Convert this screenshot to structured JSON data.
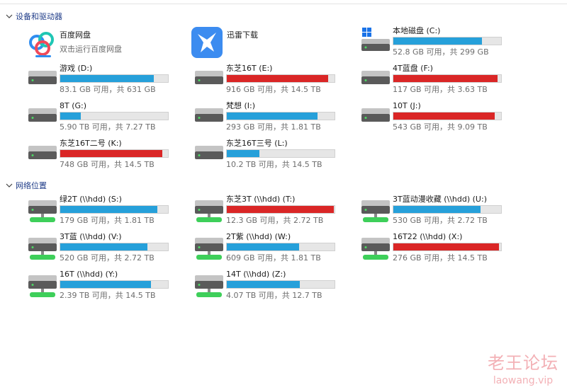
{
  "sections": [
    {
      "title": "设备和驱动器"
    },
    {
      "title": "网络位置"
    }
  ],
  "apps": [
    {
      "name": "百度网盘",
      "subtitle": "双击运行百度网盘",
      "icon": "baidu-netdisk-icon"
    },
    {
      "name": "迅雷下载",
      "icon": "xunlei-icon"
    }
  ],
  "colors": {
    "normal": "#26a0da",
    "low_space": "#da2626",
    "header": "#1f3c88"
  },
  "drives": [
    {
      "name": "本地磁盘 (C:)",
      "free": "52.8 GB 可用，共 299 GB",
      "used": 0.82,
      "color": "normal",
      "icon": "windows-drive-icon"
    },
    {
      "name": "游戏 (D:)",
      "free": "83.1 GB 可用，共 631 GB",
      "used": 0.87,
      "color": "normal",
      "icon": "hard-drive-icon"
    },
    {
      "name": "东芝16T (E:)",
      "free": "916 GB 可用，共 14.5 TB",
      "used": 0.94,
      "color": "low_space",
      "icon": "hard-drive-icon"
    },
    {
      "name": "4T蓝盘 (F:)",
      "free": "117 GB 可用，共 3.63 TB",
      "used": 0.97,
      "color": "low_space",
      "icon": "hard-drive-icon"
    },
    {
      "name": "8T (G:)",
      "free": "5.90 TB 可用，共 7.27 TB",
      "used": 0.19,
      "color": "normal",
      "icon": "hard-drive-icon"
    },
    {
      "name": "梵想 (I:)",
      "free": "293 GB 可用，共 1.81 TB",
      "used": 0.84,
      "color": "normal",
      "icon": "hard-drive-icon"
    },
    {
      "name": "10T (J:)",
      "free": "543 GB 可用，共 9.09 TB",
      "used": 0.94,
      "color": "low_space",
      "icon": "hard-drive-icon"
    },
    {
      "name": "东芝16T二号 (K:)",
      "free": "748 GB 可用，共 14.5 TB",
      "used": 0.95,
      "color": "low_space",
      "icon": "hard-drive-icon"
    },
    {
      "name": "东芝16T三号 (L:)",
      "free": "10.2 TB 可用，共 14.5 TB",
      "used": 0.3,
      "color": "normal",
      "icon": "hard-drive-icon"
    }
  ],
  "network": [
    {
      "name": "绿2T (\\\\hdd) (S:)",
      "free": "179 GB 可用，共 1.81 TB",
      "used": 0.9,
      "color": "normal"
    },
    {
      "name": "东芝3T (\\\\hdd) (T:)",
      "free": "12.3 GB 可用，共 2.72 TB",
      "used": 0.996,
      "color": "low_space"
    },
    {
      "name": "3T蓝动漫收藏 (\\\\hdd) (U:)",
      "free": "530 GB 可用，共 2.72 TB",
      "used": 0.81,
      "color": "normal"
    },
    {
      "name": "3T蓝 (\\\\hdd) (V:)",
      "free": "520 GB 可用，共 2.72 TB",
      "used": 0.81,
      "color": "normal"
    },
    {
      "name": "2T紫 (\\\\hdd) (W:)",
      "free": "609 GB 可用，共 1.81 TB",
      "used": 0.67,
      "color": "normal"
    },
    {
      "name": "16T22 (\\\\hdd) (X:)",
      "free": "276 GB 可用，共 14.5 TB",
      "used": 0.98,
      "color": "low_space"
    },
    {
      "name": "16T (\\\\hdd) (Y:)",
      "free": "2.39 TB 可用，共 14.5 TB",
      "used": 0.84,
      "color": "normal"
    },
    {
      "name": "14T (\\\\hdd) (Z:)",
      "free": "4.07 TB 可用，共 12.7 TB",
      "used": 0.68,
      "color": "normal"
    }
  ],
  "watermark": {
    "line1": "老王论坛",
    "line2": "laowang.vip"
  }
}
